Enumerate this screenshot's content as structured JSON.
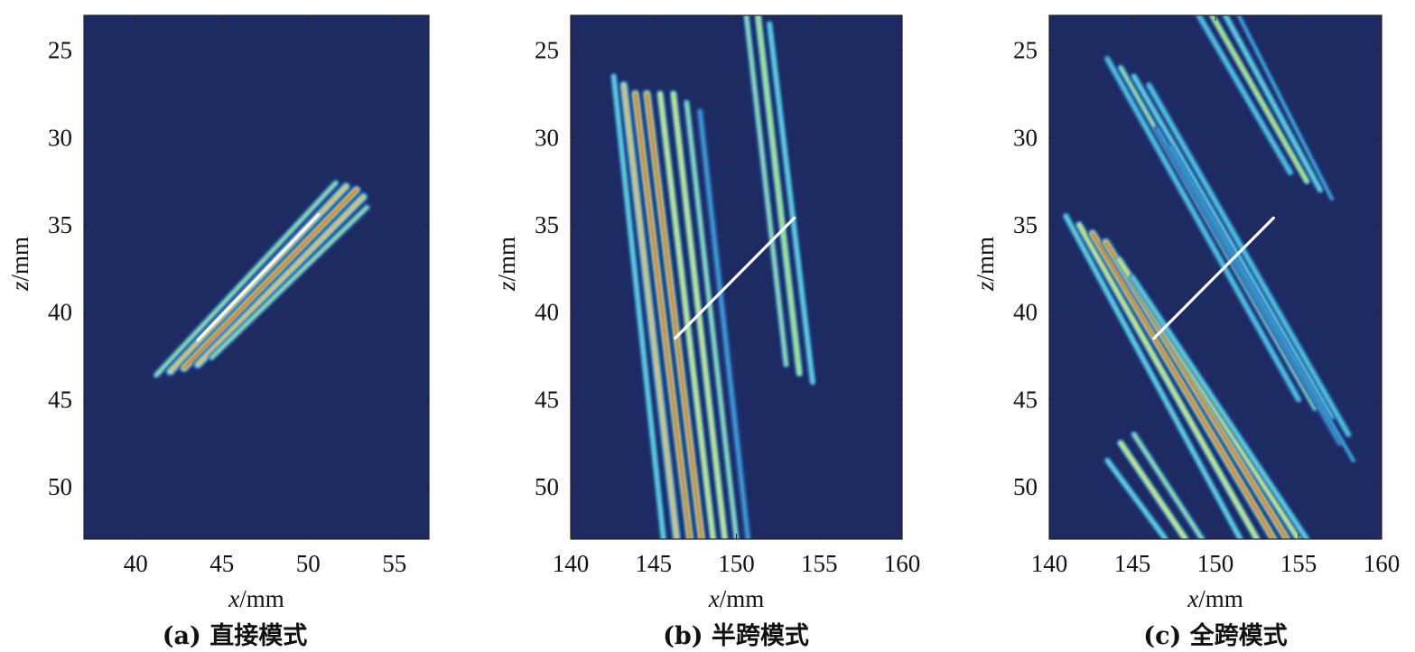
{
  "colors": {
    "background": "#1e2b63",
    "line": "#ffffff",
    "colormap": [
      "#1e2b63",
      "#2d5aa8",
      "#3aa4d8",
      "#63d0d6",
      "#b8e04f",
      "#f2e22a",
      "#f39a1e",
      "#d4241d"
    ]
  },
  "chart_data": [
    {
      "id": "a",
      "type": "heatmap",
      "caption": "(a) 直接模式",
      "xlabel_var": "x",
      "xlabel_unit": "/mm",
      "ylabel_var": "z",
      "ylabel_unit": "/mm",
      "xlim": [
        37,
        57
      ],
      "ylim": [
        23,
        53
      ],
      "y_reversed": true,
      "xticks": [
        40,
        45,
        50,
        55
      ],
      "yticks": [
        25,
        30,
        35,
        40,
        45,
        50
      ],
      "line": {
        "x": [
          43.6,
          50.6
        ],
        "y": [
          41.6,
          34.4
        ]
      },
      "stripes": [
        {
          "x1": 41.2,
          "y1": 43.6,
          "x2": 51.6,
          "y2": 32.6,
          "peak": 0.55
        },
        {
          "x1": 42.0,
          "y1": 43.4,
          "x2": 52.2,
          "y2": 32.8,
          "peak": 0.8
        },
        {
          "x1": 42.8,
          "y1": 43.2,
          "x2": 52.8,
          "y2": 33.0,
          "peak": 1.0
        },
        {
          "x1": 43.6,
          "y1": 43.0,
          "x2": 53.2,
          "y2": 33.4,
          "peak": 0.8
        },
        {
          "x1": 44.4,
          "y1": 42.6,
          "x2": 53.4,
          "y2": 34.0,
          "peak": 0.5
        }
      ]
    },
    {
      "id": "b",
      "type": "heatmap",
      "caption": "(b) 半跨模式",
      "xlabel_var": "x",
      "xlabel_unit": "/mm",
      "ylabel_var": "z",
      "ylabel_unit": "/mm",
      "xlim": [
        140,
        160
      ],
      "ylim": [
        23,
        53
      ],
      "y_reversed": true,
      "xticks": [
        140,
        145,
        150,
        155,
        160
      ],
      "yticks": [
        25,
        30,
        35,
        40,
        45,
        50
      ],
      "line": {
        "x": [
          146.3,
          153.5
        ],
        "y": [
          41.5,
          34.6
        ]
      },
      "stripes": [
        {
          "x1": 142.6,
          "y1": 26.5,
          "x2": 145.6,
          "y2": 53.0,
          "peak": 0.45
        },
        {
          "x1": 143.2,
          "y1": 27.0,
          "x2": 146.4,
          "y2": 53.0,
          "peak": 0.8
        },
        {
          "x1": 143.9,
          "y1": 27.5,
          "x2": 147.2,
          "y2": 53.0,
          "peak": 1.0
        },
        {
          "x1": 144.6,
          "y1": 27.5,
          "x2": 147.9,
          "y2": 53.0,
          "peak": 0.95
        },
        {
          "x1": 145.4,
          "y1": 27.5,
          "x2": 148.6,
          "y2": 53.0,
          "peak": 0.75
        },
        {
          "x1": 146.2,
          "y1": 27.5,
          "x2": 149.3,
          "y2": 53.0,
          "peak": 0.65
        },
        {
          "x1": 147.0,
          "y1": 28.0,
          "x2": 150.0,
          "y2": 53.0,
          "peak": 0.5
        },
        {
          "x1": 147.8,
          "y1": 28.5,
          "x2": 150.7,
          "y2": 53.0,
          "peak": 0.35
        },
        {
          "x1": 150.6,
          "y1": 23.0,
          "x2": 153.0,
          "y2": 43.0,
          "peak": 0.5
        },
        {
          "x1": 151.3,
          "y1": 23.0,
          "x2": 153.8,
          "y2": 43.5,
          "peak": 0.62
        },
        {
          "x1": 152.0,
          "y1": 23.5,
          "x2": 154.6,
          "y2": 44.0,
          "peak": 0.45
        }
      ]
    },
    {
      "id": "c",
      "type": "heatmap",
      "caption": "(c) 全跨模式",
      "xlabel_var": "x",
      "xlabel_unit": "/mm",
      "ylabel_var": "z",
      "ylabel_unit": "/mm",
      "xlim": [
        140,
        160
      ],
      "ylim": [
        23,
        53
      ],
      "y_reversed": true,
      "xticks": [
        140,
        145,
        150,
        155,
        160
      ],
      "yticks": [
        25,
        30,
        35,
        40,
        45,
        50
      ],
      "line": {
        "x": [
          146.3,
          153.5
        ],
        "y": [
          41.5,
          34.6
        ]
      },
      "stripes": [
        {
          "x1": 141.0,
          "y1": 34.5,
          "x2": 151.5,
          "y2": 53.0,
          "peak": 0.45
        },
        {
          "x1": 141.8,
          "y1": 35.0,
          "x2": 152.5,
          "y2": 53.0,
          "peak": 0.75
        },
        {
          "x1": 142.6,
          "y1": 35.5,
          "x2": 153.5,
          "y2": 53.0,
          "peak": 1.0
        },
        {
          "x1": 143.4,
          "y1": 36.0,
          "x2": 154.3,
          "y2": 53.0,
          "peak": 0.95
        },
        {
          "x1": 144.2,
          "y1": 37.0,
          "x2": 155.0,
          "y2": 53.0,
          "peak": 0.7
        },
        {
          "x1": 145.0,
          "y1": 38.0,
          "x2": 155.5,
          "y2": 53.0,
          "peak": 0.45
        },
        {
          "x1": 143.5,
          "y1": 48.5,
          "x2": 147.0,
          "y2": 53.0,
          "peak": 0.45
        },
        {
          "x1": 144.3,
          "y1": 47.5,
          "x2": 148.2,
          "y2": 53.0,
          "peak": 0.7
        },
        {
          "x1": 145.1,
          "y1": 47.0,
          "x2": 149.2,
          "y2": 53.0,
          "peak": 0.55
        },
        {
          "x1": 143.5,
          "y1": 25.5,
          "x2": 155.0,
          "y2": 45.0,
          "peak": 0.4
        },
        {
          "x1": 144.3,
          "y1": 26.0,
          "x2": 156.0,
          "y2": 45.5,
          "peak": 0.55
        },
        {
          "x1": 145.1,
          "y1": 26.5,
          "x2": 157.0,
          "y2": 46.0,
          "peak": 0.45
        },
        {
          "x1": 146.0,
          "y1": 27.0,
          "x2": 158.0,
          "y2": 47.0,
          "peak": 0.4
        },
        {
          "x1": 146.5,
          "y1": 29.5,
          "x2": 157.5,
          "y2": 47.5,
          "peak": 0.35
        },
        {
          "x1": 147.3,
          "y1": 30.5,
          "x2": 158.3,
          "y2": 48.5,
          "peak": 0.3
        },
        {
          "x1": 149.0,
          "y1": 23.0,
          "x2": 154.5,
          "y2": 32.0,
          "peak": 0.4
        },
        {
          "x1": 149.8,
          "y1": 23.0,
          "x2": 155.5,
          "y2": 32.5,
          "peak": 0.6
        },
        {
          "x1": 150.6,
          "y1": 23.0,
          "x2": 156.3,
          "y2": 33.0,
          "peak": 0.45
        },
        {
          "x1": 151.4,
          "y1": 23.0,
          "x2": 157.0,
          "y2": 33.5,
          "peak": 0.3
        }
      ]
    }
  ]
}
